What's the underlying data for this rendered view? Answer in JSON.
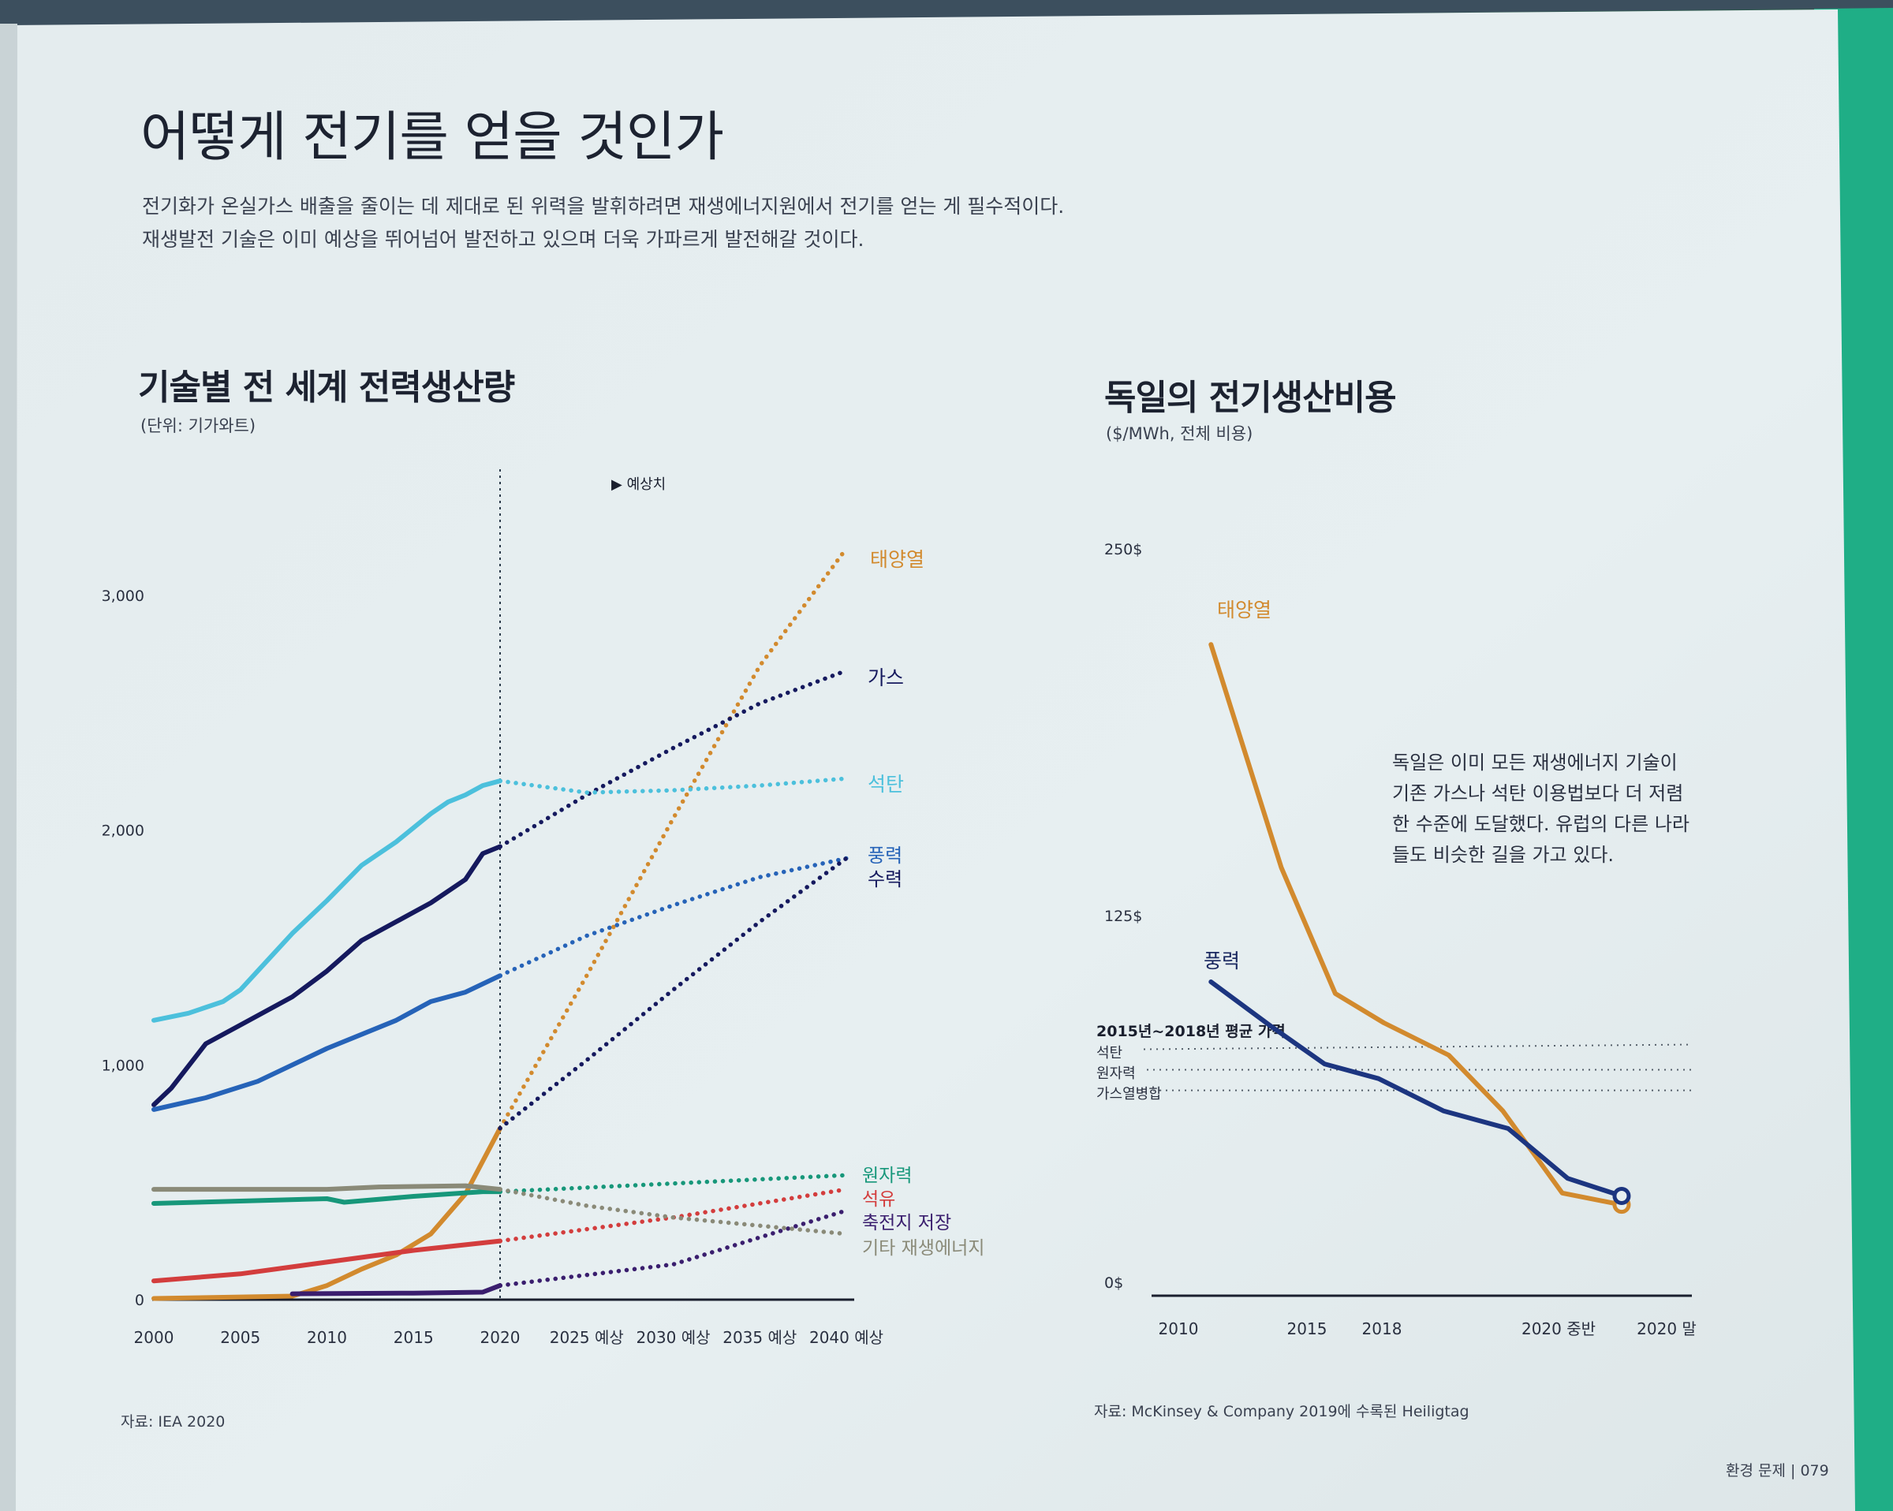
{
  "header": {
    "title": "어떻게 전기를 얻을 것인가",
    "subtitle_line1": "전기화가 온실가스 배출을 줄이는 데 제대로 된 위력을 발휘하려면 재생에너지원에서 전기를 얻는 게 필수적이다.",
    "subtitle_line2": "재생발전 기술은 이미 예상을 뛰어넘어 발전하고 있으며 더욱 가파르게 발전해갈 것이다."
  },
  "footer": {
    "page": "환경 문제 | 079"
  },
  "colors": {
    "paper": "#e6eef0",
    "solar": "#d28a2e",
    "gas": "#15195e",
    "coal": "#4cc0dc",
    "wind": "#2663b8",
    "hydro": "#15195e",
    "nuclear": "#17977a",
    "oil": "#d33d3d",
    "storage": "#3a1e6e",
    "other": "#8a8a78"
  },
  "chart_data": [
    {
      "type": "line",
      "title": "기술별 전 세계 전력생산량",
      "unit": "(단위: 기가와트)",
      "forecast_label": "▶ 예상치",
      "source": "자료: IEA 2020",
      "x_ticks": [
        "2000",
        "2005",
        "2010",
        "2015",
        "2020",
        "2025 예상",
        "2030 예상",
        "2035 예상",
        "2040 예상"
      ],
      "y_ticks": [
        "0",
        "1,000",
        "2,000",
        "3,000"
      ],
      "ylim": [
        0,
        3200
      ],
      "forecast_start": 2020,
      "series": [
        {
          "name": "태양열",
          "color": "#d28a2e",
          "actual": [
            [
              2000,
              5
            ],
            [
              2008,
              15
            ],
            [
              2010,
              60
            ],
            [
              2012,
              130
            ],
            [
              2014,
              190
            ],
            [
              2016,
              280
            ],
            [
              2018,
              450
            ],
            [
              2020,
              730
            ]
          ],
          "forecast": [
            [
              2020,
              730
            ],
            [
              2025,
              1380
            ],
            [
              2030,
              2050
            ],
            [
              2035,
              2700
            ],
            [
              2040,
              3200
            ]
          ]
        },
        {
          "name": "가스",
          "color": "#15195e",
          "actual": [
            [
              2000,
              830
            ],
            [
              2001,
              900
            ],
            [
              2003,
              1090
            ],
            [
              2005,
              1170
            ],
            [
              2008,
              1290
            ],
            [
              2010,
              1400
            ],
            [
              2012,
              1530
            ],
            [
              2014,
              1610
            ],
            [
              2016,
              1690
            ],
            [
              2018,
              1790
            ],
            [
              2019,
              1900
            ],
            [
              2020,
              1930
            ]
          ],
          "forecast": [
            [
              2020,
              1930
            ],
            [
              2025,
              2150
            ],
            [
              2030,
              2350
            ],
            [
              2035,
              2540
            ],
            [
              2040,
              2680
            ]
          ]
        },
        {
          "name": "석탄",
          "color": "#4cc0dc",
          "actual": [
            [
              2000,
              1190
            ],
            [
              2002,
              1220
            ],
            [
              2004,
              1270
            ],
            [
              2005,
              1320
            ],
            [
              2006,
              1400
            ],
            [
              2008,
              1560
            ],
            [
              2010,
              1700
            ],
            [
              2012,
              1850
            ],
            [
              2014,
              1950
            ],
            [
              2016,
              2070
            ],
            [
              2017,
              2120
            ],
            [
              2018,
              2150
            ],
            [
              2019,
              2190
            ],
            [
              2020,
              2210
            ]
          ],
          "forecast": [
            [
              2020,
              2210
            ],
            [
              2025,
              2160
            ],
            [
              2030,
              2170
            ],
            [
              2035,
              2190
            ],
            [
              2040,
              2220
            ]
          ]
        },
        {
          "name": "풍력",
          "color": "#2663b8",
          "actual": [
            [
              2000,
              810
            ],
            [
              2003,
              860
            ],
            [
              2006,
              930
            ],
            [
              2010,
              1070
            ],
            [
              2014,
              1190
            ],
            [
              2016,
              1270
            ],
            [
              2018,
              1310
            ],
            [
              2020,
              1380
            ]
          ],
          "forecast": [
            [
              2020,
              1380
            ],
            [
              2025,
              1550
            ],
            [
              2030,
              1680
            ],
            [
              2035,
              1800
            ],
            [
              2040,
              1880
            ]
          ]
        },
        {
          "name": "수력",
          "color": "#15195e",
          "actual": [],
          "forecast": [
            [
              2020,
              730
            ],
            [
              2025,
              1020
            ],
            [
              2030,
              1320
            ],
            [
              2035,
              1610
            ],
            [
              2040,
              1880
            ]
          ]
        },
        {
          "name": "원자력",
          "color": "#17977a",
          "actual": [
            [
              2000,
              410
            ],
            [
              2005,
              420
            ],
            [
              2010,
              430
            ],
            [
              2011,
              415
            ],
            [
              2015,
              440
            ],
            [
              2019,
              460
            ],
            [
              2020,
              460
            ]
          ],
          "forecast": [
            [
              2020,
              460
            ],
            [
              2030,
              495
            ],
            [
              2040,
              530
            ]
          ]
        },
        {
          "name": "석유",
          "color": "#d33d3d",
          "actual": [
            [
              2000,
              80
            ],
            [
              2005,
              110
            ],
            [
              2010,
              160
            ],
            [
              2015,
              210
            ],
            [
              2020,
              250
            ]
          ],
          "forecast": [
            [
              2020,
              250
            ],
            [
              2030,
              350
            ],
            [
              2040,
              470
            ]
          ]
        },
        {
          "name": "축전지 저장",
          "color": "#3a1e6e",
          "actual": [
            [
              2008,
              25
            ],
            [
              2015,
              28
            ],
            [
              2019,
              32
            ],
            [
              2020,
              60
            ]
          ],
          "forecast": [
            [
              2020,
              60
            ],
            [
              2030,
              150
            ],
            [
              2040,
              380
            ]
          ]
        },
        {
          "name": "기타 재생에너지",
          "color": "#8a8a78",
          "actual": [
            [
              2000,
              470
            ],
            [
              2010,
              470
            ],
            [
              2013,
              480
            ],
            [
              2018,
              485
            ],
            [
              2020,
              470
            ]
          ],
          "forecast": [
            [
              2020,
              470
            ],
            [
              2025,
              400
            ],
            [
              2030,
              350
            ],
            [
              2040,
              280
            ]
          ]
        }
      ]
    },
    {
      "type": "line",
      "title": "독일의 전기생산비용",
      "unit": "($/MWh, 전체 비용)",
      "source": "자료: McKinsey & Company 2019에 수록된 Heiligtag",
      "note": "독일은 이미 모든 재생에너지 기술이 기존 가스나 석탄 이용법보다 더 저렴한 수준에 도달했다. 유럽의 다른 나라들도 비슷한 길을 가고 있다.",
      "x_ticks": [
        "2010",
        "2015",
        "2018",
        "2020 중반",
        "2020 말"
      ],
      "y_ticks": [
        "0$",
        "125$",
        "250$"
      ],
      "ylim": [
        0,
        250
      ],
      "legend_title": "2015년~2018년 평균 가격",
      "reference_lines": [
        {
          "name": "석탄",
          "value": 84
        },
        {
          "name": "원자력",
          "value": 77
        },
        {
          "name": "가스열병합",
          "value": 70
        }
      ],
      "series": [
        {
          "name": "태양열",
          "color": "#d28a2e",
          "points": [
            [
              0.11,
              222
            ],
            [
              0.24,
              146
            ],
            [
              0.34,
              103
            ],
            [
              0.43,
              93
            ],
            [
              0.55,
              82
            ],
            [
              0.65,
              63
            ],
            [
              0.76,
              35
            ],
            [
              0.87,
              31
            ]
          ]
        },
        {
          "name": "풍력",
          "color": "#1c3580",
          "points": [
            [
              0.11,
              107
            ],
            [
              0.22,
              92
            ],
            [
              0.32,
              79
            ],
            [
              0.42,
              74
            ],
            [
              0.54,
              63
            ],
            [
              0.66,
              57
            ],
            [
              0.77,
              40
            ],
            [
              0.87,
              34
            ]
          ]
        }
      ]
    }
  ]
}
